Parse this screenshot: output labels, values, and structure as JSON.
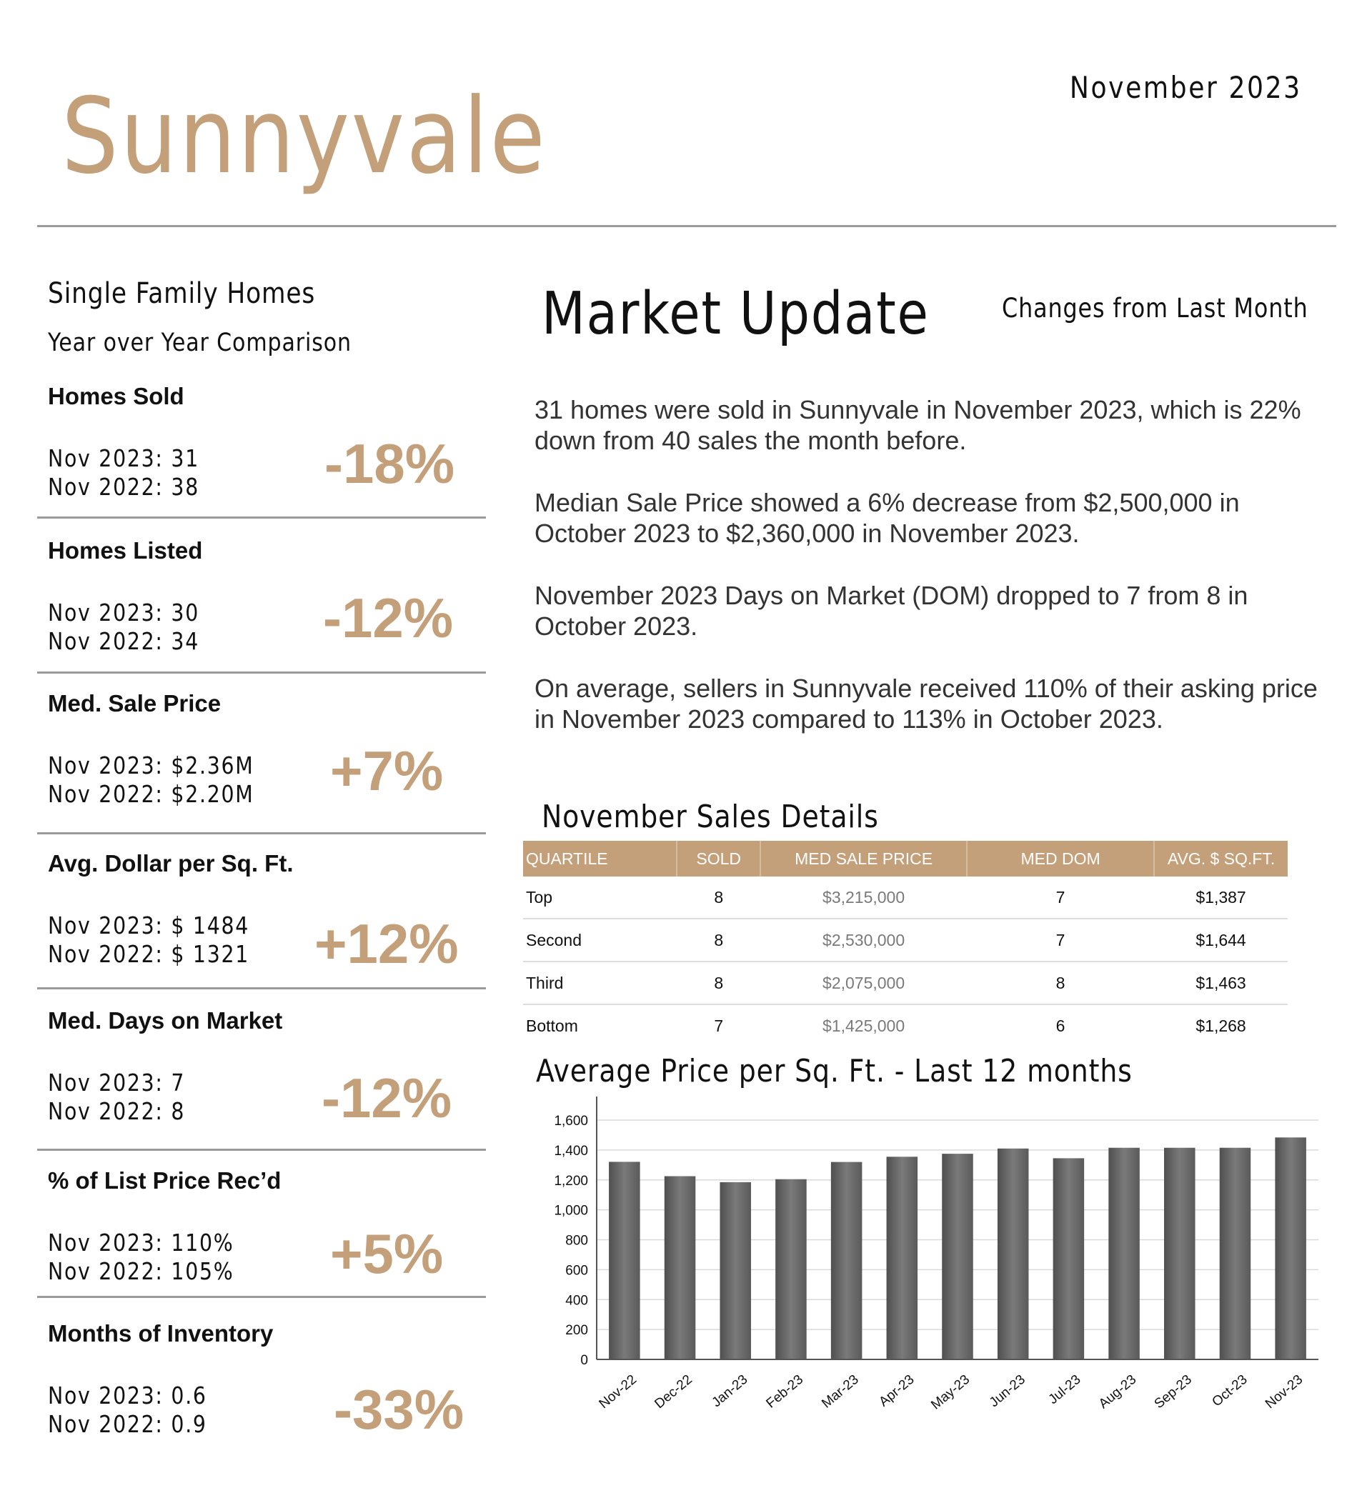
{
  "header": {
    "city": "Sunnyvale",
    "date": "November 2023"
  },
  "left": {
    "property_type": "Single Family Homes",
    "comparison": "Year over Year Comparison",
    "metrics": [
      {
        "title": "Homes Sold",
        "line1": "Nov 2023:  31",
        "line2": "Nov 2022:  38",
        "change": "-18%"
      },
      {
        "title": "Homes Listed",
        "line1": "Nov 2023:  30",
        "line2": "Nov 2022:  34",
        "change": "-12%"
      },
      {
        "title": "Med. Sale Price",
        "line1": "Nov 2023:  $2.36M",
        "line2": "Nov 2022:  $2.20M",
        "change": "+7%"
      },
      {
        "title": "Avg. Dollar per Sq. Ft.",
        "line1": "Nov 2023:  $ 1484",
        "line2": "Nov 2022:  $ 1321",
        "change": "+12%"
      },
      {
        "title": "Med. Days on Market",
        "line1": "Nov 2023:   7",
        "line2": "Nov 2022:   8",
        "change": "-12%"
      },
      {
        "title": "% of List Price Rec’d",
        "line1": "Nov 2023:   110%",
        "line2": "Nov 2022:   105%",
        "change": "+5%"
      },
      {
        "title": "Months of Inventory",
        "line1": "Nov 2023:   0.6",
        "line2": "Nov 2022:   0.9",
        "change": "-33%"
      }
    ]
  },
  "market": {
    "title": "Market Update",
    "changes_label": "Changes from Last Month",
    "paragraphs": [
      "31 homes were sold in Sunnyvale in November 2023, which is 22% down from 40 sales the month before.",
      "Median Sale Price showed a 6% decrease from $2,500,000 in October 2023 to $2,360,000 in November 2023.",
      "November 2023 Days on Market (DOM) dropped to 7 from 8 in October 2023.",
      "On average, sellers in Sunnyvale received 110% of their asking price in November 2023 compared to 113% in October 2023."
    ]
  },
  "sales_details": {
    "title": "November Sales Details",
    "columns": [
      "QUARTILE",
      "SOLD",
      "MED SALE PRICE",
      "MED DOM",
      "AVG. $ SQ.FT."
    ],
    "rows": [
      {
        "quartile": "Top",
        "sold": "8",
        "price": "$3,215,000",
        "dom": "7",
        "sqft": "$1,387"
      },
      {
        "quartile": "Second",
        "sold": "8",
        "price": "$2,530,000",
        "dom": "7",
        "sqft": "$1,644"
      },
      {
        "quartile": "Third",
        "sold": "8",
        "price": "$2,075,000",
        "dom": "8",
        "sqft": "$1,463"
      },
      {
        "quartile": "Bottom",
        "sold": "7",
        "price": "$1,425,000",
        "dom": "6",
        "sqft": "$1,268"
      }
    ]
  },
  "chart_data": {
    "type": "bar",
    "title": "Average Price per Sq. Ft. - Last 12 months",
    "xlabel": "",
    "ylabel": "",
    "categories": [
      "Nov-22",
      "Dec-22",
      "Jan-23",
      "Feb-23",
      "Mar-23",
      "Apr-23",
      "May-23",
      "Jun-23",
      "Jul-23",
      "Aug-23",
      "Sep-23",
      "Oct-23",
      "Nov-23"
    ],
    "values": [
      1321,
      1225,
      1185,
      1205,
      1320,
      1355,
      1375,
      1410,
      1345,
      1415,
      1415,
      1415,
      1484
    ],
    "ylim": [
      0,
      1600
    ],
    "yticks": [
      0,
      200,
      400,
      600,
      800,
      1000,
      1200,
      1400,
      1600
    ],
    "ytick_labels": [
      "0",
      "200",
      "400",
      "600",
      "800",
      "1,000",
      "1,200",
      "1,400",
      "1,600"
    ],
    "grid": true,
    "bar_color": "#6b6b6b"
  },
  "colors": {
    "accent": "#c3a07a",
    "rule": "#9a9a9a"
  }
}
